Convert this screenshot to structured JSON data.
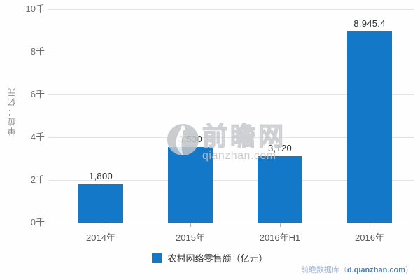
{
  "chart_data": {
    "type": "bar",
    "title": "",
    "categories": [
      "2014年",
      "2015年",
      "2016年H1",
      "2016年"
    ],
    "series": [
      {
        "name": "农村网络零售额（亿元）",
        "values": [
          1800,
          3530,
          3120,
          8945.4
        ],
        "value_labels": [
          "1,800",
          "3,530",
          "3,120",
          "8,945.4"
        ],
        "color": "#1478c8"
      }
    ],
    "xlabel": "",
    "ylabel": "单位：亿元",
    "ylim": [
      0,
      10000
    ],
    "y_ticks": [
      {
        "value": 0,
        "label": "0千"
      },
      {
        "value": 2000,
        "label": "2千"
      },
      {
        "value": 4000,
        "label": "4千"
      },
      {
        "value": 6000,
        "label": "6千"
      },
      {
        "value": 8000,
        "label": "8千"
      },
      {
        "value": 10000,
        "label": "10千"
      }
    ],
    "grid": true,
    "legend_position": "bottom"
  },
  "legend": {
    "label": "农村网络零售额（亿元）",
    "marker_color": "#1478c8"
  },
  "watermark": {
    "brand": "前瞻网",
    "domain": "qianzhan.com"
  },
  "credit": {
    "prefix": "前瞻数据库（",
    "domain": "d.qianzhan.com",
    "suffix": "）"
  },
  "colors": {
    "bar": "#1478c8",
    "gridline": "#e4e4e4",
    "axis_line": "#a9a9a9",
    "tick_label": "#6e6e6e",
    "data_label": "#2d2d2d"
  }
}
